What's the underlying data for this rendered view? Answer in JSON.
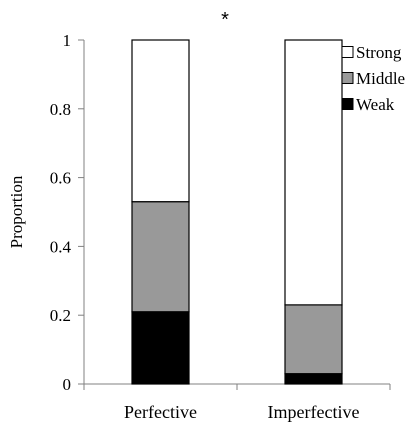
{
  "chart_data": {
    "type": "bar",
    "stacked": true,
    "title": "",
    "annotation": "*",
    "xlabel": "",
    "ylabel": "Proportion",
    "ylim": [
      0,
      1
    ],
    "yticks": [
      "0",
      "0.2",
      "0.4",
      "0.6",
      "0.8",
      "1"
    ],
    "categories": [
      "Perfective",
      "Imperfective"
    ],
    "series": [
      {
        "name": "Weak",
        "values": [
          0.21,
          0.03
        ],
        "color": "#000000"
      },
      {
        "name": "Middle",
        "values": [
          0.32,
          0.2
        ],
        "color": "#999999"
      },
      {
        "name": "Strong",
        "values": [
          0.47,
          0.77
        ],
        "color": "#ffffff"
      }
    ],
    "legend": {
      "placement": "top-right",
      "order": [
        "Strong",
        "Middle",
        "Weak"
      ]
    },
    "grid": false
  }
}
